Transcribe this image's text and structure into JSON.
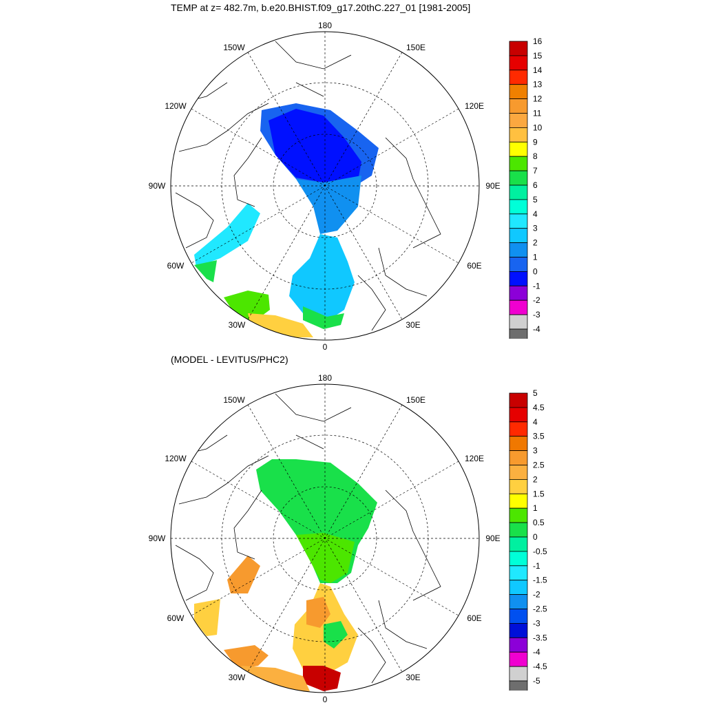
{
  "panels": [
    {
      "title": "TEMP at z= 482.7m, b.e20.BHIST.f09_g17.20thC.227_01 [1981-2005]",
      "lon_labels": {
        "n": "180",
        "nw": "150W",
        "ne": "150E",
        "wnw": "120W",
        "ene": "120E",
        "w": "90W",
        "e": "90E",
        "wsw": "60W",
        "ese": "60E",
        "ssw": "30W",
        "sse": "30E",
        "s": "0"
      },
      "colorbar": {
        "labels": [
          "16",
          "15",
          "14",
          "13",
          "12",
          "11",
          "10",
          "9",
          "8",
          "7",
          "6",
          "5",
          "4",
          "3",
          "2",
          "1",
          "0",
          "-1",
          "-2",
          "-3",
          "-4"
        ],
        "colors": [
          "#c80000",
          "#e60000",
          "#ff2a00",
          "#f08000",
          "#f79a2e",
          "#fba840",
          "#ffc040",
          "#ffff00",
          "#4ce600",
          "#19e04a",
          "#00f0a0",
          "#00ffd8",
          "#20e8ff",
          "#10c8ff",
          "#1090f0",
          "#1864f0",
          "#0010ff",
          "#8c00d8",
          "#f000d0",
          "#d0d0d0",
          "#6e6e6e"
        ]
      }
    },
    {
      "title": "(MODEL - LEVITUS/PHC2)",
      "lon_labels": {
        "n": "180",
        "nw": "150W",
        "ne": "150E",
        "wnw": "120W",
        "ene": "120E",
        "w": "90W",
        "e": "90E",
        "wsw": "60W",
        "ese": "60E",
        "ssw": "30W",
        "sse": "30E",
        "s": "0"
      },
      "colorbar": {
        "labels": [
          "5",
          "4.5",
          "4",
          "3.5",
          "3",
          "2.5",
          "2",
          "1.5",
          "1",
          "0.5",
          "0",
          "-0.5",
          "-1",
          "-1.5",
          "-2",
          "-2.5",
          "-3",
          "-3.5",
          "-4",
          "-4.5",
          "-5"
        ],
        "colors": [
          "#c80000",
          "#e60000",
          "#ff2a00",
          "#f07800",
          "#f79a2e",
          "#fbb040",
          "#ffd040",
          "#ffff00",
          "#4ce600",
          "#19e04a",
          "#00f0a0",
          "#00ffd8",
          "#20e8ff",
          "#10c8ff",
          "#1090f0",
          "#0050f0",
          "#0010d8",
          "#8c00d8",
          "#f000d0",
          "#d0d0d0",
          "#6e6e6e"
        ]
      }
    }
  ]
}
